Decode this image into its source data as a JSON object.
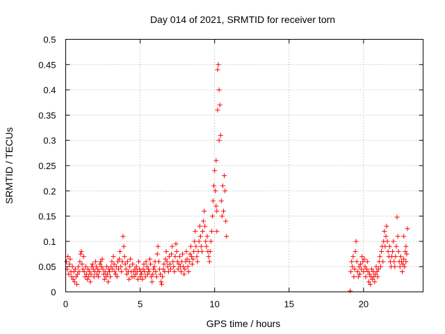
{
  "chart_data": {
    "type": "scatter",
    "title": "Day 014 of 2021, SRMTID for receiver torn",
    "xlabel": "GPS time / hours",
    "ylabel": "SRMTID / TECUs",
    "xlim": [
      0,
      24
    ],
    "ylim": [
      0,
      0.5
    ],
    "xticks": [
      0,
      5,
      10,
      15,
      20
    ],
    "yticks": [
      0,
      0.05,
      0.1,
      0.15,
      0.2,
      0.25,
      0.3,
      0.35,
      0.4,
      0.45,
      0.5
    ],
    "xtick_labels": [
      "0",
      "5",
      "10",
      "15",
      "20"
    ],
    "ytick_labels": [
      "0",
      "0.05",
      "0.1",
      "0.15",
      "0.2",
      "0.25",
      "0.3",
      "0.35",
      "0.4",
      "0.45",
      "0.5"
    ],
    "grid": true,
    "marker": "+",
    "marker_color": "#ff0000",
    "series": [
      {
        "name": "SRMTID",
        "points": [
          [
            0.05,
            0.06
          ],
          [
            0.1,
            0.045
          ],
          [
            0.15,
            0.07
          ],
          [
            0.2,
            0.035
          ],
          [
            0.25,
            0.055
          ],
          [
            0.3,
            0.065
          ],
          [
            0.35,
            0.04
          ],
          [
            0.4,
            0.03
          ],
          [
            0.45,
            0.05
          ],
          [
            0.5,
            0.025
          ],
          [
            0.55,
            0.04
          ],
          [
            0.6,
            0.02
          ],
          [
            0.65,
            0.045
          ],
          [
            0.7,
            0.03
          ],
          [
            0.75,
            0.015
          ],
          [
            0.8,
            0.035
          ],
          [
            0.85,
            0.05
          ],
          [
            0.9,
            0.04
          ],
          [
            0.95,
            0.06
          ],
          [
            1.0,
            0.075
          ],
          [
            1.05,
            0.08
          ],
          [
            1.1,
            0.055
          ],
          [
            1.15,
            0.045
          ],
          [
            1.2,
            0.07
          ],
          [
            1.25,
            0.04
          ],
          [
            1.3,
            0.03
          ],
          [
            1.35,
            0.05
          ],
          [
            1.4,
            0.035
          ],
          [
            1.45,
            0.025
          ],
          [
            1.5,
            0.045
          ],
          [
            1.55,
            0.03
          ],
          [
            1.6,
            0.04
          ],
          [
            1.65,
            0.02
          ],
          [
            1.7,
            0.035
          ],
          [
            1.75,
            0.05
          ],
          [
            1.8,
            0.055
          ],
          [
            1.85,
            0.045
          ],
          [
            1.9,
            0.03
          ],
          [
            1.95,
            0.04
          ],
          [
            2.0,
            0.06
          ],
          [
            2.05,
            0.05
          ],
          [
            2.1,
            0.035
          ],
          [
            2.15,
            0.045
          ],
          [
            2.2,
            0.03
          ],
          [
            2.25,
            0.04
          ],
          [
            2.3,
            0.055
          ],
          [
            2.35,
            0.06
          ],
          [
            2.4,
            0.05
          ],
          [
            2.45,
            0.065
          ],
          [
            2.5,
            0.045
          ],
          [
            2.55,
            0.035
          ],
          [
            2.6,
            0.025
          ],
          [
            2.65,
            0.04
          ],
          [
            2.7,
            0.03
          ],
          [
            2.75,
            0.05
          ],
          [
            2.8,
            0.035
          ],
          [
            2.85,
            0.02
          ],
          [
            2.9,
            0.045
          ],
          [
            2.95,
            0.04
          ],
          [
            3.0,
            0.03
          ],
          [
            3.05,
            0.05
          ],
          [
            3.1,
            0.06
          ],
          [
            3.15,
            0.045
          ],
          [
            3.2,
            0.07
          ],
          [
            3.25,
            0.055
          ],
          [
            3.3,
            0.04
          ],
          [
            3.35,
            0.035
          ],
          [
            3.4,
            0.05
          ],
          [
            3.45,
            0.03
          ],
          [
            3.5,
            0.06
          ],
          [
            3.55,
            0.045
          ],
          [
            3.6,
            0.065
          ],
          [
            3.65,
            0.08
          ],
          [
            3.7,
            0.05
          ],
          [
            3.75,
            0.04
          ],
          [
            3.8,
            0.06
          ],
          [
            3.85,
            0.11
          ],
          [
            3.9,
            0.09
          ],
          [
            3.95,
            0.07
          ],
          [
            4.0,
            0.055
          ],
          [
            4.05,
            0.045
          ],
          [
            4.1,
            0.035
          ],
          [
            4.15,
            0.06
          ],
          [
            4.2,
            0.04
          ],
          [
            4.25,
            0.025
          ],
          [
            4.3,
            0.05
          ],
          [
            4.35,
            0.065
          ],
          [
            4.4,
            0.04
          ],
          [
            4.45,
            0.03
          ],
          [
            4.5,
            0.055
          ],
          [
            4.55,
            0.04
          ],
          [
            4.6,
            0.03
          ],
          [
            4.65,
            0.045
          ],
          [
            4.7,
            0.035
          ],
          [
            4.75,
            0.05
          ],
          [
            4.8,
            0.04
          ],
          [
            4.85,
            0.025
          ],
          [
            4.9,
            0.06
          ],
          [
            4.95,
            0.045
          ],
          [
            5.0,
            0.03
          ],
          [
            5.05,
            0.04
          ],
          [
            5.1,
            0.035
          ],
          [
            5.15,
            0.025
          ],
          [
            5.2,
            0.045
          ],
          [
            5.25,
            0.055
          ],
          [
            5.3,
            0.04
          ],
          [
            5.35,
            0.03
          ],
          [
            5.4,
            0.06
          ],
          [
            5.45,
            0.05
          ],
          [
            5.5,
            0.035
          ],
          [
            5.55,
            0.045
          ],
          [
            5.6,
            0.04
          ],
          [
            5.65,
            0.065
          ],
          [
            5.7,
            0.055
          ],
          [
            5.75,
            0.03
          ],
          [
            5.8,
            0.02
          ],
          [
            5.85,
            0.035
          ],
          [
            5.9,
            0.045
          ],
          [
            5.95,
            0.05
          ],
          [
            6.0,
            0.06
          ],
          [
            6.05,
            0.04
          ],
          [
            6.1,
            0.03
          ],
          [
            6.15,
            0.075
          ],
          [
            6.2,
            0.09
          ],
          [
            6.25,
            0.06
          ],
          [
            6.3,
            0.045
          ],
          [
            6.35,
            0.035
          ],
          [
            6.4,
            0.02
          ],
          [
            6.45,
            0.015
          ],
          [
            6.5,
            0.03
          ],
          [
            6.55,
            0.045
          ],
          [
            6.6,
            0.055
          ],
          [
            6.65,
            0.04
          ],
          [
            6.7,
            0.065
          ],
          [
            6.75,
            0.08
          ],
          [
            6.8,
            0.06
          ],
          [
            6.85,
            0.05
          ],
          [
            6.9,
            0.04
          ],
          [
            6.95,
            0.07
          ],
          [
            7.0,
            0.055
          ],
          [
            7.05,
            0.045
          ],
          [
            7.1,
            0.075
          ],
          [
            7.15,
            0.09
          ],
          [
            7.2,
            0.06
          ],
          [
            7.25,
            0.05
          ],
          [
            7.3,
            0.04
          ],
          [
            7.35,
            0.07
          ],
          [
            7.4,
            0.095
          ],
          [
            7.45,
            0.08
          ],
          [
            7.5,
            0.06
          ],
          [
            7.55,
            0.045
          ],
          [
            7.6,
            0.055
          ],
          [
            7.65,
            0.07
          ],
          [
            7.7,
            0.05
          ],
          [
            7.75,
            0.04
          ],
          [
            7.8,
            0.06
          ],
          [
            7.85,
            0.075
          ],
          [
            7.9,
            0.05
          ],
          [
            7.95,
            0.035
          ],
          [
            8.0,
            0.045
          ],
          [
            8.05,
            0.06
          ],
          [
            8.1,
            0.08
          ],
          [
            8.15,
            0.065
          ],
          [
            8.2,
            0.05
          ],
          [
            8.25,
            0.04
          ],
          [
            8.3,
            0.06
          ],
          [
            8.35,
            0.075
          ],
          [
            8.4,
            0.09
          ],
          [
            8.45,
            0.07
          ],
          [
            8.5,
            0.055
          ],
          [
            8.55,
            0.065
          ],
          [
            8.6,
            0.08
          ],
          [
            8.65,
            0.1
          ],
          [
            8.7,
            0.12
          ],
          [
            8.75,
            0.09
          ],
          [
            8.8,
            0.07
          ],
          [
            8.85,
            0.06
          ],
          [
            8.9,
            0.08
          ],
          [
            8.95,
            0.1
          ],
          [
            9.0,
            0.13
          ],
          [
            9.05,
            0.11
          ],
          [
            9.1,
            0.09
          ],
          [
            9.15,
            0.08
          ],
          [
            9.2,
            0.12
          ],
          [
            9.25,
            0.14
          ],
          [
            9.3,
            0.16
          ],
          [
            9.35,
            0.13
          ],
          [
            9.4,
            0.1
          ],
          [
            9.45,
            0.09
          ],
          [
            9.5,
            0.11
          ],
          [
            9.55,
            0.08
          ],
          [
            9.6,
            0.07
          ],
          [
            9.65,
            0.06
          ],
          [
            9.7,
            0.08
          ],
          [
            9.75,
            0.1
          ],
          [
            9.8,
            0.12
          ],
          [
            9.85,
            0.15
          ],
          [
            9.9,
            0.18
          ],
          [
            9.95,
            0.21
          ],
          [
            10.0,
            0.24
          ],
          [
            10.05,
            0.2
          ],
          [
            10.1,
            0.17
          ],
          [
            10.15,
            0.12
          ],
          [
            10.2,
            0.44
          ],
          [
            10.25,
            0.45
          ],
          [
            10.3,
            0.4
          ],
          [
            10.35,
            0.37
          ],
          [
            10.4,
            0.31
          ],
          [
            10.45,
            0.18
          ],
          [
            10.5,
            0.15
          ],
          [
            10.55,
            0.21
          ],
          [
            10.6,
            0.16
          ],
          [
            10.65,
            0.23
          ],
          [
            10.7,
            0.2
          ],
          [
            10.75,
            0.14
          ],
          [
            10.8,
            0.11
          ],
          [
            10.2,
            0.36
          ],
          [
            10.3,
            0.3
          ],
          [
            10.15,
            0.16
          ],
          [
            10.1,
            0.26
          ],
          [
            19.1,
            0.002
          ],
          [
            19.15,
            0.04
          ],
          [
            19.2,
            0.06
          ],
          [
            19.25,
            0.05
          ],
          [
            19.3,
            0.07
          ],
          [
            19.35,
            0.03
          ],
          [
            19.4,
            0.045
          ],
          [
            19.45,
            0.08
          ],
          [
            19.5,
            0.1
          ],
          [
            19.55,
            0.06
          ],
          [
            19.6,
            0.04
          ],
          [
            19.65,
            0.03
          ],
          [
            19.7,
            0.05
          ],
          [
            19.75,
            0.035
          ],
          [
            19.8,
            0.055
          ],
          [
            19.85,
            0.045
          ],
          [
            19.9,
            0.07
          ],
          [
            19.95,
            0.06
          ],
          [
            20.0,
            0.04
          ],
          [
            20.05,
            0.065
          ],
          [
            20.1,
            0.05
          ],
          [
            20.15,
            0.03
          ],
          [
            20.2,
            0.045
          ],
          [
            20.25,
            0.06
          ],
          [
            20.3,
            0.04
          ],
          [
            20.35,
            0.02
          ],
          [
            20.4,
            0.035
          ],
          [
            20.45,
            0.015
          ],
          [
            20.5,
            0.03
          ],
          [
            20.55,
            0.045
          ],
          [
            20.6,
            0.025
          ],
          [
            20.65,
            0.04
          ],
          [
            20.7,
            0.03
          ],
          [
            20.75,
            0.02
          ],
          [
            20.8,
            0.035
          ],
          [
            20.85,
            0.05
          ],
          [
            20.9,
            0.04
          ],
          [
            20.95,
            0.03
          ],
          [
            21.0,
            0.045
          ],
          [
            21.05,
            0.06
          ],
          [
            21.1,
            0.07
          ],
          [
            21.15,
            0.05
          ],
          [
            21.2,
            0.08
          ],
          [
            21.25,
            0.09
          ],
          [
            21.3,
            0.06
          ],
          [
            21.35,
            0.1
          ],
          [
            21.4,
            0.12
          ],
          [
            21.45,
            0.09
          ],
          [
            21.5,
            0.11
          ],
          [
            21.55,
            0.13
          ],
          [
            21.6,
            0.1
          ],
          [
            21.65,
            0.08
          ],
          [
            21.7,
            0.07
          ],
          [
            21.75,
            0.09
          ],
          [
            21.8,
            0.06
          ],
          [
            21.85,
            0.05
          ],
          [
            21.9,
            0.07
          ],
          [
            21.95,
            0.08
          ],
          [
            22.0,
            0.1
          ],
          [
            22.05,
            0.06
          ],
          [
            22.1,
            0.05
          ],
          [
            22.15,
            0.07
          ],
          [
            22.2,
            0.09
          ],
          [
            22.25,
            0.148
          ],
          [
            22.3,
            0.11
          ],
          [
            22.35,
            0.08
          ],
          [
            22.4,
            0.06
          ],
          [
            22.45,
            0.05
          ],
          [
            22.5,
            0.07
          ],
          [
            22.55,
            0.06
          ],
          [
            22.6,
            0.04
          ],
          [
            22.65,
            0.055
          ],
          [
            22.7,
            0.065
          ],
          [
            22.75,
            0.05
          ],
          [
            22.8,
            0.08
          ],
          [
            22.85,
            0.09
          ],
          [
            22.9,
            0.075
          ],
          [
            22.95,
            0.125
          ],
          [
            22.7,
            0.11
          ],
          [
            22.85,
            0.06
          ]
        ]
      }
    ]
  }
}
